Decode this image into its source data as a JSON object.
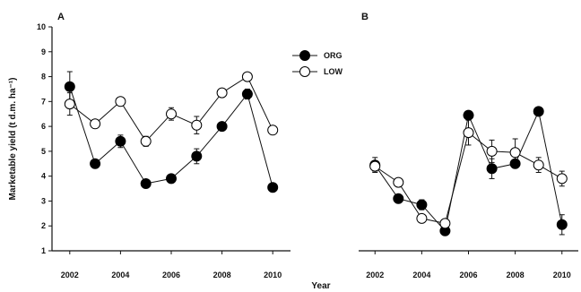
{
  "chart_data": [
    {
      "type": "line",
      "panel_label": "A",
      "x": [
        2002,
        2003,
        2004,
        2005,
        2006,
        2007,
        2008,
        2009,
        2010
      ],
      "xlim": [
        2001.3,
        2010.7
      ],
      "xticks": [
        "2002",
        "2004",
        "2006",
        "2008",
        "2010"
      ],
      "ylim": [
        1,
        10
      ],
      "yticks": [
        "1",
        "2",
        "3",
        "4",
        "5",
        "6",
        "7",
        "8",
        "9",
        "10"
      ],
      "ylabel": "Marketable yield (t d.m. ha⁻¹)",
      "series": [
        {
          "name": "ORG",
          "marker": "filled-circle",
          "values": [
            7.6,
            4.5,
            5.4,
            3.7,
            3.9,
            4.8,
            6.0,
            7.3,
            3.55
          ],
          "errors": [
            0.6,
            0.15,
            0.25,
            0.1,
            0.15,
            0.3,
            0.15,
            0.2,
            0.1
          ]
        },
        {
          "name": "LOW",
          "marker": "open-circle",
          "values": [
            6.9,
            6.1,
            7.0,
            5.4,
            6.5,
            6.05,
            7.35,
            8.0,
            5.85
          ],
          "errors": [
            0.45,
            0.15,
            0.15,
            0.2,
            0.25,
            0.35,
            0.15,
            0.15,
            0.15
          ]
        }
      ],
      "legend": "top-right"
    },
    {
      "type": "line",
      "panel_label": "B",
      "x": [
        2002,
        2003,
        2004,
        2005,
        2006,
        2007,
        2008,
        2009,
        2010
      ],
      "xlim": [
        2001.3,
        2010.7
      ],
      "xticks": [
        "2002",
        "2004",
        "2006",
        "2008",
        "2010"
      ],
      "ylim": [
        1,
        10
      ],
      "series": [
        {
          "name": "ORG",
          "marker": "filled-circle",
          "values": [
            4.45,
            3.1,
            2.85,
            1.8,
            6.45,
            4.3,
            4.5,
            6.6,
            2.05
          ],
          "errors": [
            0.3,
            0.1,
            0.2,
            0.1,
            0.15,
            0.4,
            0.15,
            0.1,
            0.4
          ]
        },
        {
          "name": "LOW",
          "marker": "open-circle",
          "values": [
            4.4,
            3.75,
            2.3,
            2.1,
            5.75,
            5.0,
            4.95,
            4.45,
            3.9
          ],
          "errors": [
            0.2,
            0.15,
            0.15,
            0.15,
            0.5,
            0.45,
            0.55,
            0.3,
            0.3
          ]
        }
      ]
    }
  ],
  "xlabel": "Year"
}
